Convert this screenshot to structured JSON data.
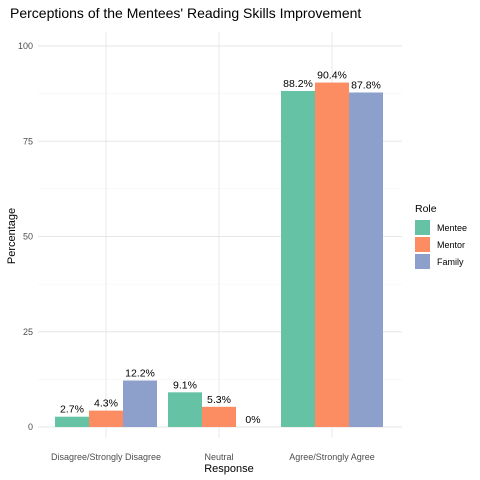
{
  "chart_data": {
    "type": "bar",
    "title": "Perceptions of the Mentees' Reading Skills Improvement",
    "xlabel": "Response",
    "ylabel": "Percentage",
    "categories": [
      "Disagree/Strongly Disagree",
      "Neutral",
      "Agree/Strongly Agree"
    ],
    "series": [
      {
        "name": "Mentee",
        "color": "#66c2a5",
        "values": [
          2.7,
          9.1,
          88.2
        ],
        "labels": [
          "2.7%",
          "9.1%",
          "88.2%"
        ]
      },
      {
        "name": "Mentor",
        "color": "#fc8d62",
        "values": [
          4.3,
          5.3,
          90.4
        ],
        "labels": [
          "4.3%",
          "5.3%",
          "90.4%"
        ]
      },
      {
        "name": "Family",
        "color": "#8da0cb",
        "values": [
          12.2,
          0,
          87.8
        ],
        "labels": [
          "12.2%",
          "0%",
          "87.8%"
        ]
      }
    ],
    "ylim": [
      0,
      100
    ],
    "yticks": [
      0,
      25,
      50,
      75,
      100
    ],
    "grid": true,
    "legend": {
      "title": "Role",
      "placement": "right"
    }
  }
}
